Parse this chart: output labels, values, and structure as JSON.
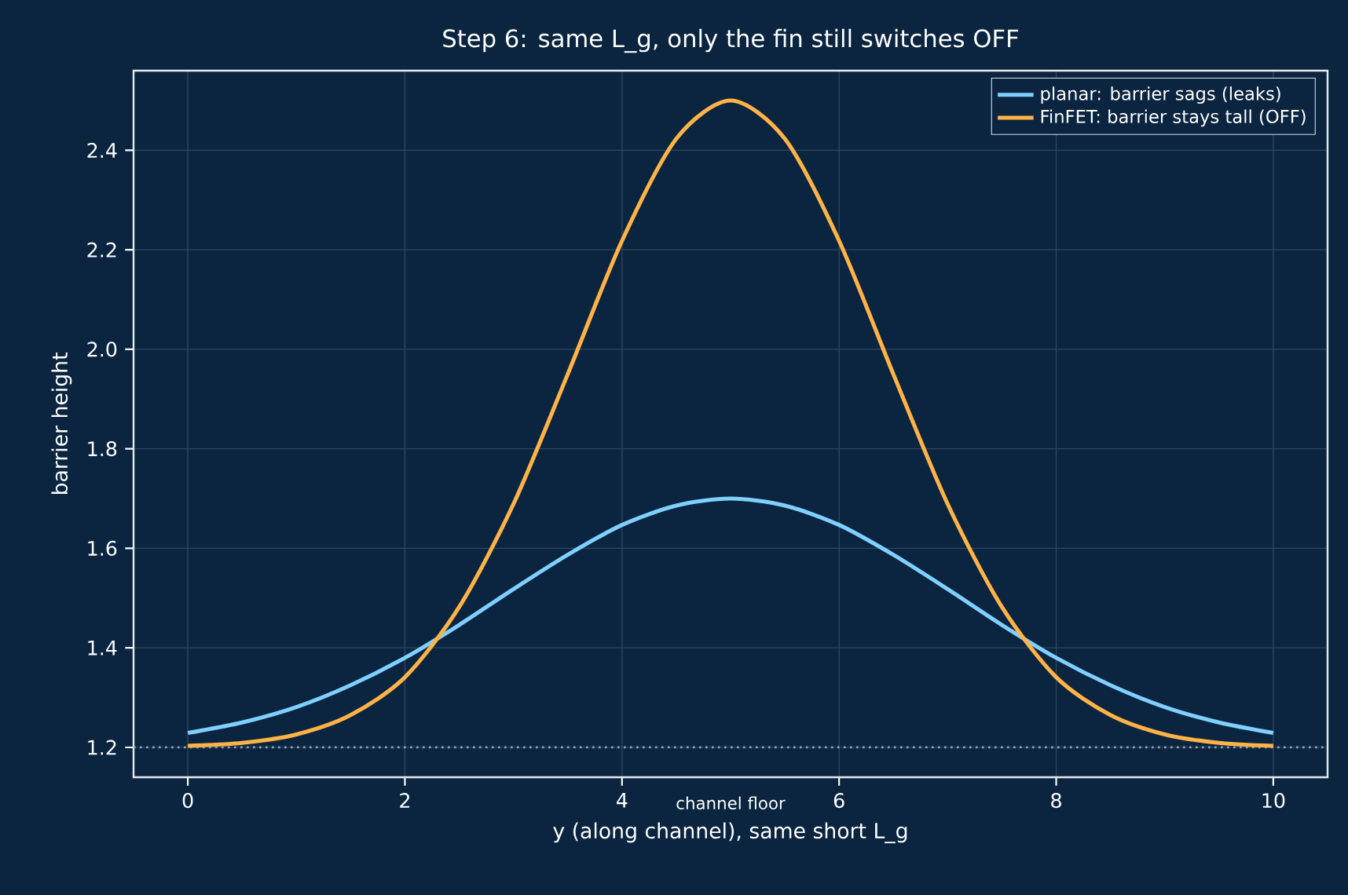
{
  "chart_data": {
    "type": "line",
    "title": "Step 6: same L_g, only the fin still switches OFF",
    "xlabel": "y (along channel), same short L_g",
    "ylabel": "barrier height",
    "x": [
      0,
      0.5,
      1,
      1.5,
      2,
      2.5,
      3,
      3.5,
      4,
      4.5,
      5,
      5.5,
      6,
      6.5,
      7,
      7.5,
      8,
      8.5,
      9,
      9.5,
      10
    ],
    "series": [
      {
        "name": "planar: barrier sags (leaks)",
        "color": "#7fd0ff",
        "values": [
          1.229,
          1.25,
          1.281,
          1.325,
          1.38,
          1.446,
          1.518,
          1.587,
          1.647,
          1.686,
          1.7,
          1.686,
          1.647,
          1.587,
          1.518,
          1.446,
          1.38,
          1.325,
          1.281,
          1.25,
          1.229
        ]
      },
      {
        "name": "FinFET: barrier stays tall (OFF)",
        "color": "#ffb347",
        "values": [
          1.203,
          1.209,
          1.226,
          1.265,
          1.341,
          1.482,
          1.689,
          1.95,
          2.218,
          2.423,
          2.5,
          2.423,
          2.218,
          1.95,
          1.689,
          1.482,
          1.341,
          1.265,
          1.226,
          1.209,
          1.203
        ]
      }
    ],
    "xlim": [
      -0.5,
      10.5
    ],
    "ylim": [
      1.14,
      2.56
    ],
    "xticks": [
      0,
      2,
      4,
      6,
      8,
      10
    ],
    "yticks": [
      1.2,
      1.4,
      1.6,
      1.8,
      {
        "value": 2,
        "label": "2.0"
      },
      2.2,
      2.4
    ],
    "ref_lines": [
      {
        "axis": "y",
        "value": 1.2,
        "label": "channel floor",
        "color": "#8aa0b4",
        "line_style": "dotted"
      }
    ],
    "grid": true,
    "legend": "top right",
    "marker": "none",
    "line_style": "solid"
  }
}
